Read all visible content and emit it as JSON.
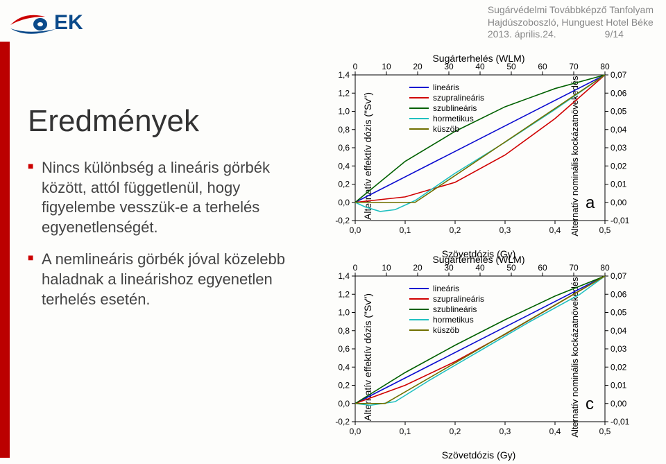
{
  "header": {
    "line1": "Sugárvédelmi Továbbképző Tanfolyam",
    "line2": "Hajdúszoboszló, Hunguest Hotel Béke",
    "date": "2013. április.24.",
    "pager": "9/14"
  },
  "logo": {
    "text": "EK",
    "swoosh1": "#0b4a8a",
    "swoosh2": "#c00"
  },
  "left": {
    "title": "Eredmények",
    "b1": "Nincs különbség a lineáris görbék között, attól függetlenül, hogy figyelembe vesszük-e a terhelés egyenetlenségét.",
    "b2": "A nemlineáris görbék jóval közelebb haladnak a lineárishoz egyenetlen terhelés esetén."
  },
  "chart_common": {
    "x_bottom_label": "Szövetdózis (Gy)",
    "x_top_title": "Sugárterhelés (WLM)",
    "y_left_label": "Alternatív effektív dózis (\"Sv\")",
    "y_right_label": "Alternatív nominális kockázatnövekedés",
    "x_bottom_ticks": [
      "0,0",
      "0,1",
      "0,2",
      "0,3",
      "0,4",
      "0,5"
    ],
    "x_top_ticks": [
      "0",
      "10",
      "20",
      "30",
      "40",
      "50",
      "60",
      "70",
      "80"
    ],
    "y_left_ticks": [
      "-0,2",
      "0,0",
      "0,2",
      "0,4",
      "0,6",
      "0,8",
      "1,0",
      "1,2",
      "1,4"
    ],
    "y_right_ticks": [
      "-0,01",
      "0,00",
      "0,01",
      "0,02",
      "0,03",
      "0,04",
      "0,05",
      "0,06",
      "0,07"
    ],
    "legend": [
      {
        "label": "lineáris",
        "color": "#0b0bd0"
      },
      {
        "label": "szupralineáris",
        "color": "#d00000"
      },
      {
        "label": "szublineáris",
        "color": "#006000"
      },
      {
        "label": "hormetikus",
        "color": "#20c0c0"
      },
      {
        "label": "küszöb",
        "color": "#707000"
      }
    ],
    "axis_color": "#000",
    "bg": "#fff"
  },
  "chart_a": {
    "panel": "a",
    "series": {
      "linearis": {
        "color": "#0b0bd0",
        "pts": [
          [
            0,
            0
          ],
          [
            0.5,
            1.4
          ]
        ]
      },
      "szupra": {
        "color": "#d00000",
        "pts": [
          [
            0,
            0
          ],
          [
            0.1,
            0.06
          ],
          [
            0.2,
            0.22
          ],
          [
            0.3,
            0.52
          ],
          [
            0.4,
            0.92
          ],
          [
            0.5,
            1.4
          ]
        ]
      },
      "szub": {
        "color": "#006000",
        "pts": [
          [
            0,
            0
          ],
          [
            0.1,
            0.45
          ],
          [
            0.2,
            0.78
          ],
          [
            0.3,
            1.05
          ],
          [
            0.4,
            1.25
          ],
          [
            0.5,
            1.4
          ]
        ]
      },
      "hormetikus": {
        "color": "#20c0c0",
        "pts": [
          [
            0,
            0
          ],
          [
            0.02,
            -0.05
          ],
          [
            0.05,
            -0.1
          ],
          [
            0.08,
            -0.08
          ],
          [
            0.12,
            0.02
          ],
          [
            0.2,
            0.32
          ],
          [
            0.3,
            0.66
          ],
          [
            0.4,
            1.02
          ],
          [
            0.5,
            1.4
          ]
        ]
      },
      "kuszob": {
        "color": "#707000",
        "pts": [
          [
            0,
            0
          ],
          [
            0.12,
            0
          ],
          [
            0.5,
            1.4
          ]
        ]
      }
    }
  },
  "chart_c": {
    "panel": "c",
    "series": {
      "linearis": {
        "color": "#0b0bd0",
        "pts": [
          [
            0,
            0
          ],
          [
            0.5,
            1.4
          ]
        ]
      },
      "szupra": {
        "color": "#d00000",
        "pts": [
          [
            0,
            0
          ],
          [
            0.1,
            0.2
          ],
          [
            0.2,
            0.46
          ],
          [
            0.3,
            0.76
          ],
          [
            0.4,
            1.08
          ],
          [
            0.5,
            1.4
          ]
        ]
      },
      "szub": {
        "color": "#006000",
        "pts": [
          [
            0,
            0
          ],
          [
            0.1,
            0.34
          ],
          [
            0.2,
            0.64
          ],
          [
            0.3,
            0.92
          ],
          [
            0.4,
            1.18
          ],
          [
            0.5,
            1.4
          ]
        ]
      },
      "hormetikus": {
        "color": "#20c0c0",
        "pts": [
          [
            0,
            0
          ],
          [
            0.03,
            -0.02
          ],
          [
            0.08,
            0.02
          ],
          [
            0.15,
            0.26
          ],
          [
            0.25,
            0.58
          ],
          [
            0.35,
            0.9
          ],
          [
            0.45,
            1.2
          ],
          [
            0.5,
            1.4
          ]
        ]
      },
      "kuszob": {
        "color": "#707000",
        "pts": [
          [
            0,
            0
          ],
          [
            0.06,
            0
          ],
          [
            0.5,
            1.4
          ]
        ]
      }
    }
  }
}
